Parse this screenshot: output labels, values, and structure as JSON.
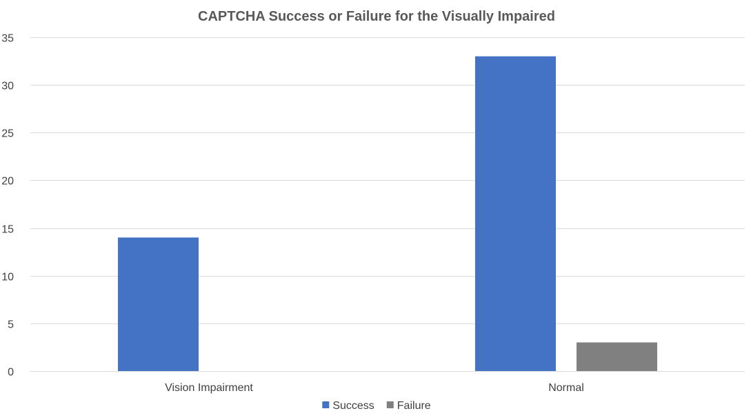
{
  "chart_data": {
    "type": "bar",
    "title": "CAPTCHA Success or Failure for the Visually Impaired",
    "xlabel": "",
    "ylabel": "",
    "categories": [
      "Vision Impairment",
      "Normal"
    ],
    "series": [
      {
        "name": "Success",
        "values": [
          14,
          33
        ],
        "color": "#4472C4"
      },
      {
        "name": "Failure",
        "values": [
          0,
          3
        ],
        "color": "#808080"
      }
    ],
    "ylim": [
      0,
      35
    ],
    "yticks": [
      0,
      5,
      10,
      15,
      20,
      25,
      30,
      35
    ],
    "grid": true,
    "legend_position": "bottom"
  }
}
